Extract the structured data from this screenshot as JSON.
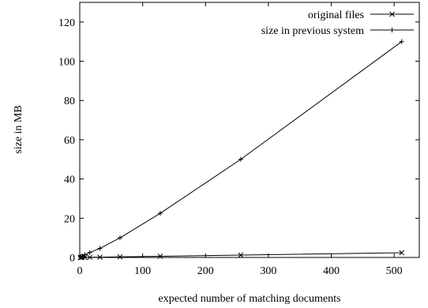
{
  "chart_data": {
    "type": "line",
    "xlabel": "expected number of matching documents",
    "ylabel": "size in MB",
    "xlim": [
      0,
      540
    ],
    "ylim": [
      0,
      130
    ],
    "xticks": [
      0,
      100,
      200,
      300,
      400,
      500
    ],
    "yticks": [
      0,
      20,
      40,
      60,
      80,
      100,
      120
    ],
    "grid": false,
    "legend_position": "top-right",
    "series": [
      {
        "name": "original files",
        "marker": "x",
        "color": "#000000",
        "x": [
          1,
          2,
          4,
          8,
          16,
          32,
          64,
          128,
          256,
          512
        ],
        "y": [
          0.005,
          0.01,
          0.02,
          0.04,
          0.08,
          0.16,
          0.3,
          0.6,
          1.2,
          2.4
        ]
      },
      {
        "name": "size in previous system",
        "marker": "+",
        "color": "#000000",
        "x": [
          1,
          2,
          4,
          8,
          16,
          32,
          64,
          128,
          256,
          512
        ],
        "y": [
          0.2,
          0.4,
          0.8,
          1.4,
          2.5,
          4.6,
          10,
          22.5,
          50,
          110
        ]
      }
    ]
  }
}
